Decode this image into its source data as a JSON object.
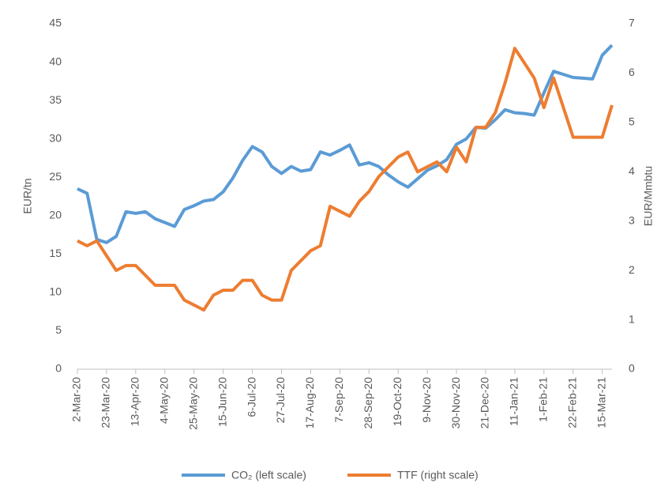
{
  "chart_data": {
    "type": "line",
    "categories": [
      "2-Mar-20",
      null,
      null,
      "23-Mar-20",
      null,
      null,
      "13-Apr-20",
      null,
      null,
      "4-May-20",
      null,
      null,
      "25-May-20",
      null,
      null,
      "15-Jun-20",
      null,
      null,
      "6-Jul-20",
      null,
      null,
      "27-Jul-20",
      null,
      null,
      "17-Aug-20",
      null,
      null,
      "7-Sep-20",
      null,
      null,
      "28-Sep-20",
      null,
      null,
      "19-Oct-20",
      null,
      null,
      "9-Nov-20",
      null,
      null,
      "30-Nov-20",
      null,
      null,
      "21-Dec-20",
      null,
      null,
      "11-Jan-21",
      null,
      null,
      "1-Feb-21",
      null,
      null,
      "22-Feb-21",
      null,
      null,
      "15-Mar-21",
      null
    ],
    "series": [
      {
        "name": "CO₂ (left scale)",
        "color": "#5b9bd5",
        "axis": "y",
        "values": [
          23.5,
          22.9,
          16.9,
          16.5,
          17.3,
          20.5,
          20.3,
          20.5,
          19.6,
          19.1,
          18.6,
          20.8,
          21.3,
          21.9,
          22.1,
          23.1,
          24.9,
          27.2,
          29.0,
          28.3,
          26.4,
          25.5,
          26.4,
          25.8,
          26.0,
          28.3,
          27.9,
          28.5,
          29.2,
          26.6,
          26.9,
          26.4,
          25.3,
          24.4,
          23.7,
          24.8,
          25.9,
          26.5,
          27.3,
          29.3,
          30.0,
          31.5,
          31.4,
          32.5,
          33.8,
          33.4,
          33.3,
          33.1,
          36.0,
          38.8,
          38.4,
          38.0,
          37.9,
          37.8,
          40.9,
          42.2
        ]
      },
      {
        "name": "TTF (right scale)",
        "color": "#ed7d31",
        "axis": "y2",
        "values": [
          2.6,
          2.5,
          2.6,
          2.3,
          2.0,
          2.1,
          2.1,
          1.9,
          1.7,
          1.7,
          1.7,
          1.4,
          1.3,
          1.2,
          1.5,
          1.6,
          1.6,
          1.8,
          1.8,
          1.5,
          1.4,
          1.4,
          2.0,
          2.2,
          2.4,
          2.5,
          3.3,
          3.2,
          3.1,
          3.4,
          3.6,
          3.9,
          4.1,
          4.3,
          4.4,
          4.0,
          4.1,
          4.2,
          4.0,
          4.5,
          4.2,
          4.9,
          4.9,
          5.2,
          5.8,
          6.5,
          6.2,
          5.9,
          5.3,
          5.9,
          5.3,
          4.7,
          4.7,
          4.7,
          4.7,
          5.35
        ]
      }
    ],
    "ylabel": "EUR/tn",
    "y2label": "EUR/Mmbtu",
    "ylim": [
      0,
      45
    ],
    "yticks": [
      0,
      5,
      10,
      15,
      20,
      25,
      30,
      35,
      40,
      45
    ],
    "y2lim": [
      0,
      7
    ],
    "y2ticks": [
      0,
      1,
      2,
      3,
      4,
      5,
      6,
      7
    ],
    "grid": false,
    "legend": "bottom"
  }
}
